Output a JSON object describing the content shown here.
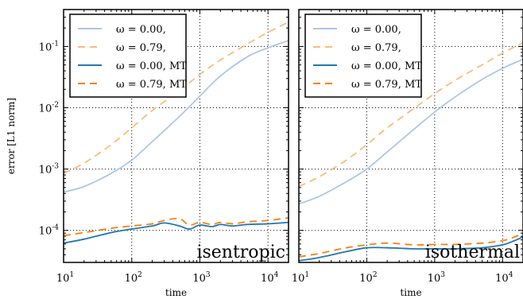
{
  "chart_data": [
    {
      "type": "line",
      "panel": "left",
      "annotation": "isentropic",
      "xlabel": "time",
      "ylabel": "error [L1 norm]",
      "xscale": "log",
      "yscale": "log",
      "xlim": [
        10,
        20000
      ],
      "ylim": [
        3e-05,
        0.4
      ],
      "grid": true,
      "legend_position": "top-left",
      "xticks": [
        "10^1",
        "10^2",
        "10^3",
        "10^4"
      ],
      "yticks": [
        "10^-4",
        "10^-3",
        "10^-2",
        "10^-1"
      ],
      "series": [
        {
          "name": "ω = 0.00,",
          "color": "#aac8e6",
          "style": "solid",
          "x": [
            10,
            20,
            50,
            100,
            200,
            500,
            1000,
            2000,
            5000,
            10000,
            20000
          ],
          "y": [
            0.00042,
            0.00052,
            0.00085,
            0.0014,
            0.0028,
            0.0072,
            0.0155,
            0.033,
            0.068,
            0.095,
            0.125
          ]
        },
        {
          "name": "ω = 0.79,",
          "color": "#ffbb78",
          "style": "dashed",
          "x": [
            10,
            20,
            50,
            100,
            200,
            500,
            1000,
            2000,
            5000,
            10000,
            20000
          ],
          "y": [
            0.00085,
            0.00125,
            0.0025,
            0.0047,
            0.009,
            0.019,
            0.035,
            0.06,
            0.11,
            0.17,
            0.25
          ]
        },
        {
          "name": "ω = 0.00, MT",
          "color": "#1f77b4",
          "style": "solid",
          "x": [
            10,
            20,
            50,
            100,
            200,
            300,
            500,
            700,
            1000,
            1500,
            2000,
            3000,
            5000,
            10000,
            20000
          ],
          "y": [
            6.2e-05,
            7.2e-05,
            9.2e-05,
            0.000105,
            0.000118,
            0.000132,
            0.000118,
            0.000105,
            0.000122,
            0.000115,
            0.000125,
            0.000118,
            0.000125,
            0.000128,
            0.000135
          ]
        },
        {
          "name": "ω = 0.79, MT",
          "color": "#ff7f0e",
          "style": "dashed",
          "x": [
            10,
            20,
            50,
            100,
            200,
            300,
            500,
            700,
            1000,
            1500,
            2000,
            3000,
            5000,
            10000,
            20000
          ],
          "y": [
            8.2e-05,
            9.2e-05,
            0.000108,
            0.000118,
            0.000128,
            0.000145,
            0.000155,
            0.000122,
            0.000135,
            0.000125,
            0.000135,
            0.000128,
            0.000138,
            0.000145,
            0.00016
          ]
        }
      ]
    },
    {
      "type": "line",
      "panel": "right",
      "annotation": "isothermal",
      "xlabel": "time",
      "ylabel": "",
      "xscale": "log",
      "yscale": "log",
      "xlim": [
        10,
        20000
      ],
      "ylim": [
        3e-05,
        0.4
      ],
      "grid": true,
      "legend_position": "top-left",
      "xticks": [
        "10^1",
        "10^2",
        "10^3",
        "10^4"
      ],
      "series": [
        {
          "name": "ω = 0.00,",
          "color": "#aac8e6",
          "style": "solid",
          "x": [
            10,
            20,
            50,
            100,
            200,
            500,
            1000,
            2000,
            5000,
            10000,
            20000
          ],
          "y": [
            0.00027,
            0.00036,
            0.00062,
            0.001,
            0.0019,
            0.0045,
            0.0085,
            0.015,
            0.029,
            0.044,
            0.062
          ]
        },
        {
          "name": "ω = 0.79,",
          "color": "#ffbb78",
          "style": "dashed",
          "x": [
            10,
            20,
            50,
            100,
            200,
            500,
            1000,
            2000,
            5000,
            10000,
            20000
          ],
          "y": [
            0.00052,
            0.00075,
            0.0014,
            0.0025,
            0.0047,
            0.0098,
            0.017,
            0.028,
            0.05,
            0.078,
            0.115
          ]
        },
        {
          "name": "ω = 0.00, MT",
          "color": "#1f77b4",
          "style": "solid",
          "x": [
            10,
            20,
            50,
            100,
            200,
            500,
            1000,
            2000,
            5000,
            10000,
            15000,
            20000
          ],
          "y": [
            3.2e-05,
            3.6e-05,
            4.5e-05,
            5.2e-05,
            5.2e-05,
            5e-05,
            5e-05,
            5e-05,
            5.2e-05,
            5.8e-05,
            6.8e-05,
            7.8e-05
          ]
        },
        {
          "name": "ω = 0.79, MT",
          "color": "#ff7f0e",
          "style": "dashed",
          "x": [
            10,
            20,
            50,
            100,
            200,
            500,
            1000,
            2000,
            5000,
            10000,
            15000,
            20000
          ],
          "y": [
            3.7e-05,
            4.2e-05,
            5.2e-05,
            5.8e-05,
            6.2e-05,
            5.8e-05,
            5.9e-05,
            5.9e-05,
            6.2e-05,
            6.8e-05,
            7.8e-05,
            9e-05
          ]
        }
      ]
    }
  ]
}
